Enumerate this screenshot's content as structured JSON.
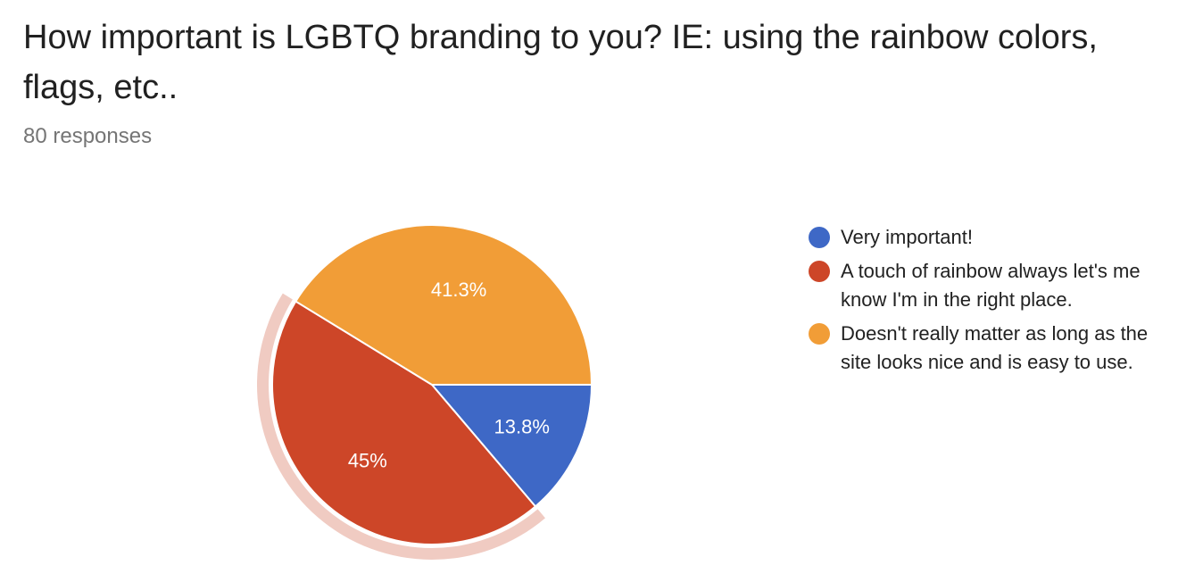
{
  "question": {
    "title": "How important is LGBTQ branding to you? IE: using the rainbow colors, flags, etc..",
    "responses": "80 responses"
  },
  "chart_data": {
    "type": "pie",
    "slices": [
      {
        "label": "Very important!",
        "value": 13.8,
        "value_label": "13.8%",
        "color": "#3e68c6"
      },
      {
        "label": "A touch of rainbow always let's me know I'm in the right place.",
        "value": 45,
        "value_label": "45%",
        "color": "#cd4628",
        "highlighted": true,
        "highlight_color": "#f0cbc2"
      },
      {
        "label": "Doesn't really matter as long as the site looks nice and is easy to use.",
        "value": 41.3,
        "value_label": "41.3%",
        "color": "#f19d37"
      }
    ],
    "legend_position": "right"
  }
}
